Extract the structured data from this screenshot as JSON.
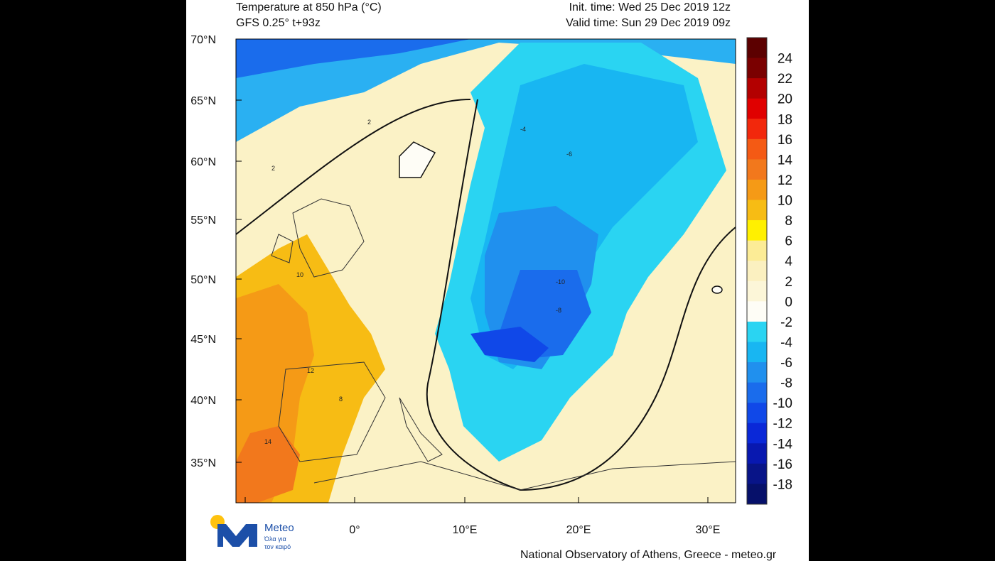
{
  "header": {
    "title": "Temperature at 850 hPa (°C)",
    "model": "GFS 0.25° t+93z",
    "init_time": "Init. time: Wed 25 Dec 2019 12z",
    "valid_time": "Valid time: Sun 29 Dec 2019 09z"
  },
  "lat_labels": [
    "70°N",
    "65°N",
    "60°N",
    "55°N",
    "50°N",
    "45°N",
    "40°N",
    "35°N"
  ],
  "lon_labels": [
    "0°",
    "10°E",
    "20°E",
    "30°E"
  ],
  "colorbar": {
    "labels": [
      "24",
      "22",
      "20",
      "18",
      "16",
      "14",
      "12",
      "10",
      "8",
      "6",
      "4",
      "2",
      "0",
      "-2",
      "-4",
      "-6",
      "-8",
      "-10",
      "-12",
      "-14",
      "-16",
      "-18"
    ],
    "colors": [
      "#7a0000",
      "#b30000",
      "#e00000",
      "#f2280c",
      "#f45a14",
      "#f2781c",
      "#f59a16",
      "#f7bc14",
      "#fff000",
      "#fcec96",
      "#fbf0c0",
      "#fcf6d8",
      "#fefdf6",
      "#2ad4f2",
      "#18b6f2",
      "#2090ee",
      "#1a6cec",
      "#1048e8",
      "#0a28d8",
      "#0818b0",
      "#081488",
      "#06106a"
    ]
  },
  "contour_labels": [
    "2",
    "2",
    "-4",
    "-6",
    "-8",
    "-10",
    "10",
    "12",
    "14",
    "8"
  ],
  "logo": {
    "name": "Meteo",
    "tagline_1": "Όλα για",
    "tagline_2": "τον καιρό"
  },
  "footer": "National Observatory of Athens, Greece - meteo.gr"
}
